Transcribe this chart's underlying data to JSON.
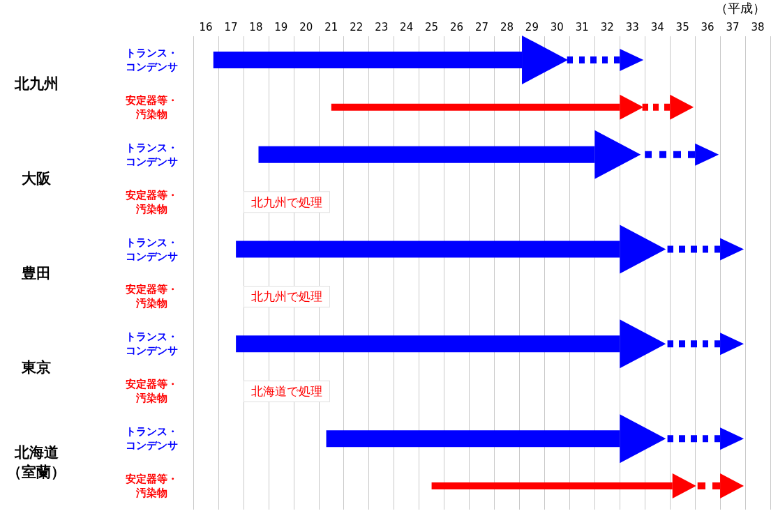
{
  "chart_data": {
    "type": "bar",
    "orientation": "horizontal",
    "xlabel": "（平成）",
    "categories": [
      "トランス・コンデンサ",
      "安定器等・汚染物",
      "トランス・コンデンサ",
      "安定器等・汚染物",
      "トランス・コンデンサ",
      "安定器等・汚染物",
      "トランス・コンデンサ",
      "安定器等・汚染物",
      "トランス・コンデンサ",
      "安定器等・汚染物"
    ],
    "series": [
      {
        "colors": [
          "#0000ff",
          "#ff0000",
          "#0000ff",
          null,
          "#0000ff",
          null,
          "#0000ff",
          null,
          "#0000ff",
          "#ff0000"
        ],
        "base": [
          16.3,
          21,
          18.1,
          null,
          17.2,
          null,
          17.2,
          null,
          20.8,
          25
        ],
        "values": [
          12.3,
          11.5,
          13.4,
          null,
          15.3,
          null,
          15.3,
          null,
          11.7,
          9.6
        ],
        "line_style": "solid"
      },
      {
        "colors": [
          "#0000ff",
          "#ff0000",
          "#0000ff",
          null,
          "#0000ff",
          null,
          "#0000ff",
          null,
          "#0000ff",
          "#ff0000"
        ],
        "base": [
          30.4,
          33.4,
          33.5,
          null,
          34.4,
          null,
          34.4,
          null,
          34.4,
          35.6
        ],
        "values": [
          2.1,
          1.1,
          2,
          null,
          2.1,
          null,
          2.1,
          null,
          2.1,
          0.9
        ],
        "line_style": "dotted"
      }
    ],
    "xlim": [
      15.5,
      38.5
    ],
    "xticks": [
      16,
      17,
      18,
      19,
      20,
      21,
      22,
      23,
      24,
      25,
      26,
      27,
      28,
      29,
      30,
      31,
      32,
      33,
      34,
      35,
      36,
      37,
      38
    ],
    "grid": "x",
    "annotations": [
      "北九州",
      "大阪",
      "豊田",
      "東京",
      "北海道（室蘭）",
      "北九州で処理",
      "北九州で処理",
      "北海道で処理"
    ]
  }
}
